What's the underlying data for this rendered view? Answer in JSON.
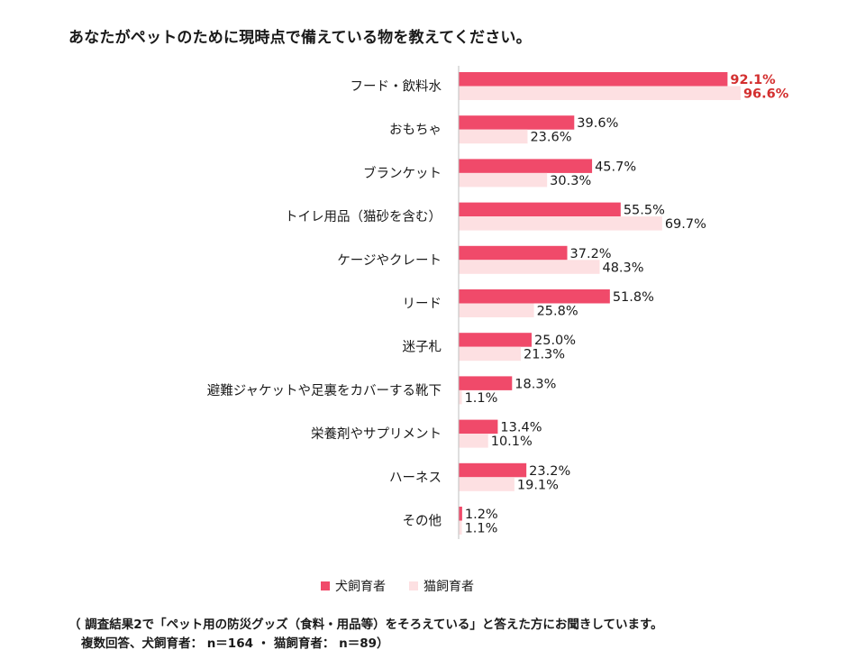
{
  "title": "あなたがペットのために現時点で備えている物を教えてください。",
  "colors": {
    "dog": "#f04a6a",
    "cat": "#fde0e2",
    "highlight": "#d32f2f",
    "axis": "#bfbfbf"
  },
  "chart_data": {
    "type": "bar",
    "orientation": "horizontal",
    "categories": [
      "フード・飲料水",
      "おもちゃ",
      "ブランケット",
      "トイレ用品（猫砂を含む）",
      "ケージやクレート",
      "リード",
      "迷子札",
      "避難ジャケットや足裏をカバーする靴下",
      "栄養剤やサプリメント",
      "ハーネス",
      "その他"
    ],
    "series": [
      {
        "name": "犬飼育者",
        "values": [
          92.1,
          39.6,
          45.7,
          55.5,
          37.2,
          51.8,
          25.0,
          18.3,
          13.4,
          23.2,
          1.2
        ],
        "labels": [
          "92.1%",
          "39.6%",
          "45.7%",
          "55.5%",
          "37.2%",
          "51.8%",
          "25.0%",
          "18.3%",
          "13.4%",
          "23.2%",
          "1.2%"
        ]
      },
      {
        "name": "猫飼育者",
        "values": [
          96.6,
          23.6,
          30.3,
          69.7,
          48.3,
          25.8,
          21.3,
          1.1,
          10.1,
          19.1,
          1.1
        ],
        "labels": [
          "96.6%",
          "23.6%",
          "30.3%",
          "69.7%",
          "48.3%",
          "25.8%",
          "21.3%",
          "1.1%",
          "10.1%",
          "19.1%",
          "1.1%"
        ]
      }
    ],
    "highlighted_labels": [
      {
        "series": 0,
        "category": 0
      },
      {
        "series": 1,
        "category": 0
      }
    ],
    "xlim": [
      0,
      100
    ],
    "grid": false,
    "legend": "bottom"
  },
  "legend": {
    "dog": "犬飼育者",
    "cat": "猫飼育者"
  },
  "footnote": {
    "line1": "（ 調査結果2で「ペット用の防災グッズ（食料・用品等）をそろえている」と答えた方にお聞きしています。",
    "line2": "複数回答、犬飼育者： n＝164 ・ 猫飼育者： n＝89）"
  }
}
